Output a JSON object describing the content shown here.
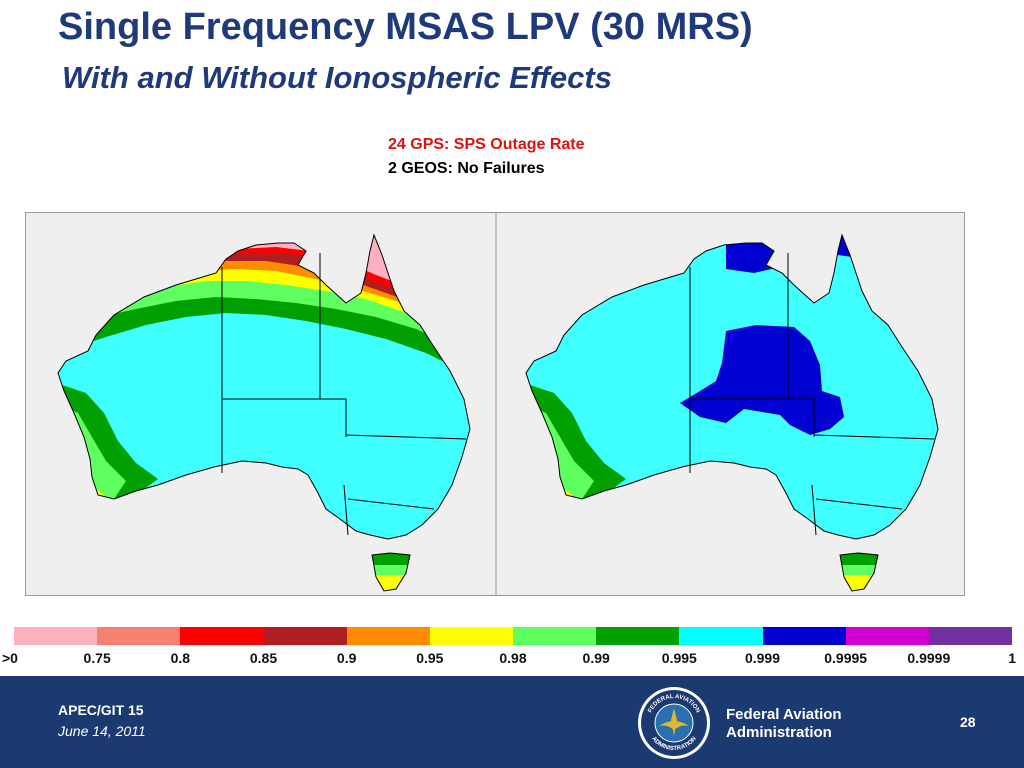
{
  "slide": {
    "title": "Single Frequency MSAS LPV (30 MRS)",
    "subtitle": "With and Without Ionospheric Effects",
    "note_line1": "24 GPS: SPS Outage Rate",
    "note_line2": "2 GEOS: No Failures",
    "note_line1_color": "#e01010"
  },
  "legend": {
    "colors": [
      "#ffb0c0",
      "#f88070",
      "#ff0000",
      "#b01e22",
      "#ff8c00",
      "#ffff00",
      "#60ff60",
      "#00a000",
      "#00ffff",
      "#0000d0",
      "#d000d0",
      "#7030a0"
    ],
    "tick_labels": [
      ">0",
      "0.75",
      "0.8",
      "0.85",
      "0.9",
      "0.95",
      "0.98",
      "0.99",
      "0.995",
      "0.999",
      "0.9995",
      "0.9999",
      "1"
    ]
  },
  "maps": {
    "left_panel": "with-ionospheric-effects",
    "right_panel": "without-ionospheric-effects",
    "background_color": "#efefef",
    "land_base_color": "#40ffff"
  },
  "footer": {
    "left_line1": "APEC/GIT 15",
    "left_line2": "June 14, 2011",
    "agency_line1": "Federal Aviation",
    "agency_line2": "Administration",
    "page_number": "28",
    "seal_top_text": "FEDERAL AVIATION",
    "seal_bottom_text": "ADMINISTRATION",
    "bar_color": "#1b3a72"
  }
}
